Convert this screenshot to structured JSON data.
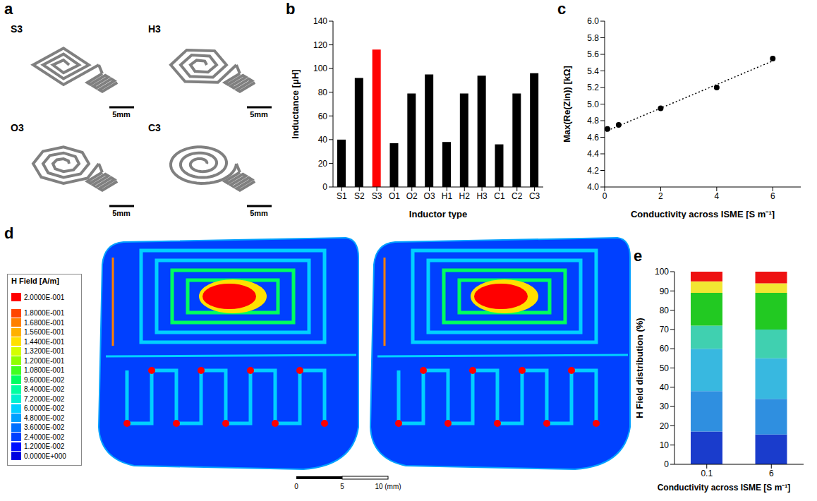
{
  "panel_labels": [
    "a",
    "b",
    "c",
    "d",
    "e"
  ],
  "panel_a": {
    "items": [
      {
        "label": "S3",
        "shape": "square"
      },
      {
        "label": "H3",
        "shape": "hexagon"
      },
      {
        "label": "O3",
        "shape": "octagon"
      },
      {
        "label": "C3",
        "shape": "circle"
      }
    ],
    "scale_bar": "5mm"
  },
  "chart_data": [
    {
      "type": "bar",
      "categories": [
        "S1",
        "S2",
        "S3",
        "O1",
        "O2",
        "O3",
        "H1",
        "H2",
        "H3",
        "C1",
        "C2",
        "C3"
      ],
      "values": [
        40,
        92,
        116,
        37,
        79,
        95,
        38,
        79,
        94,
        36,
        79,
        96
      ],
      "colors": [
        "#000000",
        "#000000",
        "#ff0000",
        "#000000",
        "#000000",
        "#000000",
        "#000000",
        "#000000",
        "#000000",
        "#000000",
        "#000000",
        "#000000"
      ],
      "x_label": "Inductor type",
      "y_label": "Inductance [μH]",
      "ylim": [
        0,
        140
      ],
      "yticks": [
        0,
        20,
        40,
        60,
        80,
        100,
        120,
        140
      ]
    },
    {
      "type": "scatter",
      "x": [
        0.1,
        0.5,
        2,
        4,
        6
      ],
      "values": [
        4.7,
        4.75,
        4.95,
        5.2,
        5.55
      ],
      "color": "#000000",
      "marker": "circle",
      "xlim": [
        0,
        7
      ],
      "xticks": [
        0,
        2,
        4,
        6
      ],
      "ylim": [
        4,
        6
      ],
      "yticks": [
        {
          "value": 4,
          "label": "4.0"
        },
        {
          "value": 4.2,
          "label": "4.2"
        },
        {
          "value": 4.4,
          "label": "4.4"
        },
        {
          "value": 4.6,
          "label": "4.6"
        },
        {
          "value": 4.8,
          "label": "4.8"
        },
        {
          "value": 5,
          "label": "5.0"
        },
        {
          "value": 5.2,
          "label": "5.2"
        },
        {
          "value": 5.4,
          "label": "5.4"
        },
        {
          "value": 5.6,
          "label": "5.6"
        },
        {
          "value": 5.8,
          "label": "5.8"
        },
        {
          "value": 6,
          "label": "6.0"
        }
      ],
      "x_label": "Conductivity across ISME [S m⁻¹]",
      "y_label": "Max(Re(Zin)) [kΩ]",
      "trendline": {
        "x": [
          0.1,
          6
        ],
        "values": [
          4.68,
          5.52
        ],
        "line_style": "dotted",
        "color": "#000000"
      }
    },
    {
      "type": "bar",
      "stacked": true,
      "categories": [
        "0.1",
        "6"
      ],
      "series": [
        {
          "color": "#1a3ccc",
          "values": [
            17,
            15.5
          ]
        },
        {
          "color": "#2f8fe0",
          "values": [
            21,
            18.5
          ]
        },
        {
          "color": "#38b8e0",
          "values": [
            22,
            21
          ]
        },
        {
          "color": "#40d0b0",
          "values": [
            12,
            15
          ]
        },
        {
          "color": "#22c922",
          "values": [
            17,
            19
          ]
        },
        {
          "color": "#f2e632",
          "values": [
            6,
            5
          ]
        },
        {
          "color": "#ee1111",
          "values": [
            5,
            6
          ]
        }
      ],
      "x_label": "Conductivity across ISME [S m⁻¹]",
      "y_label": "H Field distribution (%)",
      "ylim": [
        0,
        100
      ],
      "yticks": [
        0,
        10,
        20,
        30,
        40,
        50,
        60,
        70,
        80,
        90,
        100
      ]
    }
  ],
  "panel_d": {
    "colorbar": {
      "title": "H Field [A/m]",
      "ticks": [
        {
          "value": 0.2,
          "label": "2.0000E-001"
        },
        {
          "value": 0.18,
          "label": "1.8000E-001"
        },
        {
          "value": 0.168,
          "label": "1.6800E-001"
        },
        {
          "value": 0.156,
          "label": "1.5600E-001"
        },
        {
          "value": 0.144,
          "label": "1.4400E-001"
        },
        {
          "value": 0.132,
          "label": "1.3200E-001"
        },
        {
          "value": 0.12,
          "label": "1.2000E-001"
        },
        {
          "value": 0.108,
          "label": "1.0800E-001"
        },
        {
          "value": 0.096,
          "label": "9.6000E-002"
        },
        {
          "value": 0.084,
          "label": "8.4000E-002"
        },
        {
          "value": 0.072,
          "label": "7.2000E-002"
        },
        {
          "value": 0.06,
          "label": "6.0000E-002"
        },
        {
          "value": 0.048,
          "label": "4.8000E-002"
        },
        {
          "value": 0.036,
          "label": "3.6000E-002"
        },
        {
          "value": 0.024,
          "label": "2.4000E-002"
        },
        {
          "value": 0.012,
          "label": "1.2000E-002"
        },
        {
          "value": 0,
          "label": "0.0000E+000"
        }
      ],
      "colors": [
        "#ff0000",
        "#ff4500",
        "#ff8000",
        "#ffb000",
        "#ffe000",
        "#d4ff00",
        "#90ff00",
        "#40ff20",
        "#00ff60",
        "#00ffa0",
        "#00f0d0",
        "#00d0ff",
        "#00a0ff",
        "#0070ff",
        "#0040ff",
        "#0010ff",
        "#0000e0"
      ]
    },
    "scale_bar": [
      "0",
      "5",
      "10 (mm)"
    ]
  }
}
